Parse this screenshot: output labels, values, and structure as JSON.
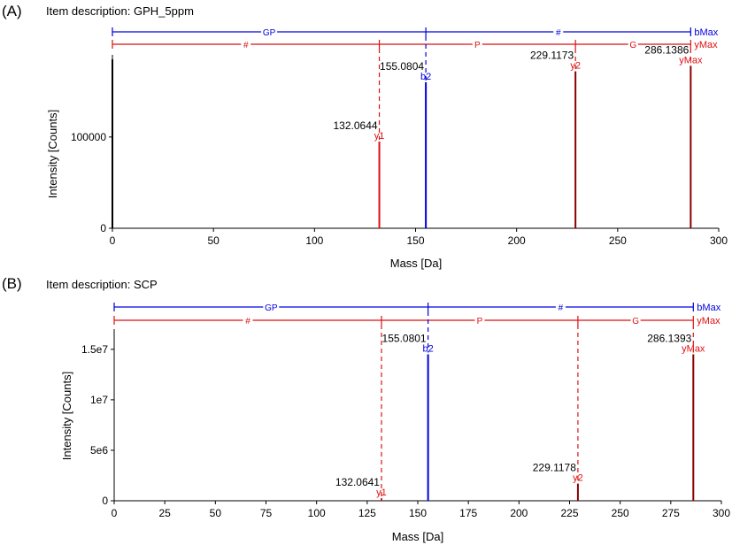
{
  "figure": {
    "panels": [
      {
        "label": "(A)",
        "item_description": "Item description: GPH_5ppm"
      },
      {
        "label": "(B)",
        "item_description": "Item description: SCP"
      }
    ]
  },
  "colors": {
    "b_series": "#0000dd",
    "y_series": "#dd1111",
    "peak_dark": "#8b0000",
    "axis": "#000000"
  },
  "chart_data": [
    {
      "type": "bar",
      "subtype": "mass-spectrum",
      "title": "Item description: GPH_5ppm",
      "xlabel": "Mass [Da]",
      "ylabel": "Intensity [Counts]",
      "xlim": [
        0,
        300
      ],
      "ylim": [
        0,
        190000
      ],
      "x_ticks": [
        0,
        50,
        100,
        150,
        200,
        250,
        300
      ],
      "x_tick_labels": [
        "0",
        "50",
        "100",
        "150",
        "200",
        "250",
        "300"
      ],
      "y_ticks": [
        0,
        100000
      ],
      "y_tick_labels": [
        "0",
        "100000"
      ],
      "peaks": [
        {
          "mass": 0.0,
          "intensity": 185000,
          "ion": "",
          "label": "",
          "color": "#000000"
        },
        {
          "mass": 132.0644,
          "intensity": 95000,
          "ion": "y1",
          "label": "132.0644",
          "color": "#dd1111"
        },
        {
          "mass": 155.0804,
          "intensity": 160000,
          "ion": "b2",
          "label": "155.0804",
          "color": "#0000dd"
        },
        {
          "mass": 229.1173,
          "intensity": 172000,
          "ion": "y2",
          "label": "229.1173",
          "color": "#8b0000"
        },
        {
          "mass": 286.1386,
          "intensity": 178000,
          "ion": "yMax",
          "label": "286.1386",
          "color": "#8b0000"
        }
      ],
      "b_ladder": {
        "end_label": "bMax",
        "segments": [
          "GP",
          "#"
        ],
        "breaks": [
          0,
          155.0804,
          286.1386
        ]
      },
      "y_ladder": {
        "end_label": "yMax",
        "segments": [
          "#",
          "P",
          "G"
        ],
        "breaks": [
          0,
          132.0644,
          229.1173,
          286.1386
        ]
      }
    },
    {
      "type": "bar",
      "subtype": "mass-spectrum",
      "title": "Item description: SCP",
      "xlabel": "Mass [Da]",
      "ylabel": "Intensity [Counts]",
      "xlim": [
        0,
        300
      ],
      "ylim": [
        0,
        17000000
      ],
      "x_ticks": [
        0,
        25,
        50,
        75,
        100,
        125,
        150,
        175,
        200,
        225,
        250,
        275,
        300
      ],
      "x_tick_labels": [
        "0",
        "25",
        "50",
        "75",
        "100",
        "125",
        "150",
        "175",
        "200",
        "225",
        "250",
        "275",
        "300"
      ],
      "y_ticks": [
        0,
        5000000,
        10000000,
        15000000
      ],
      "y_tick_labels": [
        "0",
        "5e6",
        "1e7",
        "1.5e7"
      ],
      "peaks": [
        {
          "mass": 132.0641,
          "intensity": 250000,
          "ion": "y1",
          "label": "132.0641",
          "color": "#dd1111"
        },
        {
          "mass": 155.0801,
          "intensity": 14500000,
          "ion": "b2",
          "label": "155.0801",
          "color": "#0000dd"
        },
        {
          "mass": 229.1178,
          "intensity": 1700000,
          "ion": "y2",
          "label": "229.1178",
          "color": "#8b0000"
        },
        {
          "mass": 286.1393,
          "intensity": 14500000,
          "ion": "yMax",
          "label": "286.1393",
          "color": "#8b0000"
        }
      ],
      "b_ladder": {
        "end_label": "bMax",
        "segments": [
          "GP",
          "#"
        ],
        "breaks": [
          0,
          155.0801,
          286.1393
        ]
      },
      "y_ladder": {
        "end_label": "yMax",
        "segments": [
          "#",
          "P",
          "G"
        ],
        "breaks": [
          0,
          132.0641,
          229.1178,
          286.1393
        ]
      }
    }
  ]
}
